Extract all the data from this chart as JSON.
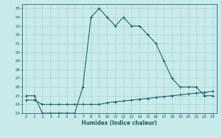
{
  "title": "",
  "xlabel": "Humidex (Indice chaleur)",
  "bg_color": "#c8eaea",
  "grid_color": "#a8d8d8",
  "line_color": "#1a6060",
  "x": [
    0,
    1,
    2,
    3,
    4,
    5,
    6,
    7,
    8,
    9,
    10,
    11,
    12,
    13,
    14,
    15,
    16,
    17,
    18,
    19,
    20,
    21,
    22,
    23
  ],
  "line1": [
    25,
    25,
    23,
    23,
    23,
    23,
    23,
    26,
    34,
    35,
    34,
    33,
    34,
    33,
    33,
    32,
    31,
    29,
    27,
    26,
    26,
    26,
    25,
    25
  ],
  "line2": [
    24.5,
    24.5,
    24.0,
    24.0,
    24.0,
    24.0,
    24.0,
    24.0,
    24.0,
    24.0,
    24.2,
    24.3,
    24.4,
    24.5,
    24.6,
    24.7,
    24.8,
    24.9,
    25.0,
    25.1,
    25.2,
    25.3,
    25.4,
    25.5
  ],
  "ylim": [
    23,
    35.5
  ],
  "xlim": [
    -0.5,
    23.5
  ],
  "yticks": [
    23,
    24,
    25,
    26,
    27,
    28,
    29,
    30,
    31,
    32,
    33,
    34,
    35
  ],
  "xticks": [
    0,
    1,
    2,
    3,
    4,
    5,
    6,
    7,
    8,
    9,
    10,
    11,
    12,
    13,
    14,
    15,
    16,
    17,
    18,
    19,
    20,
    21,
    22,
    23
  ]
}
